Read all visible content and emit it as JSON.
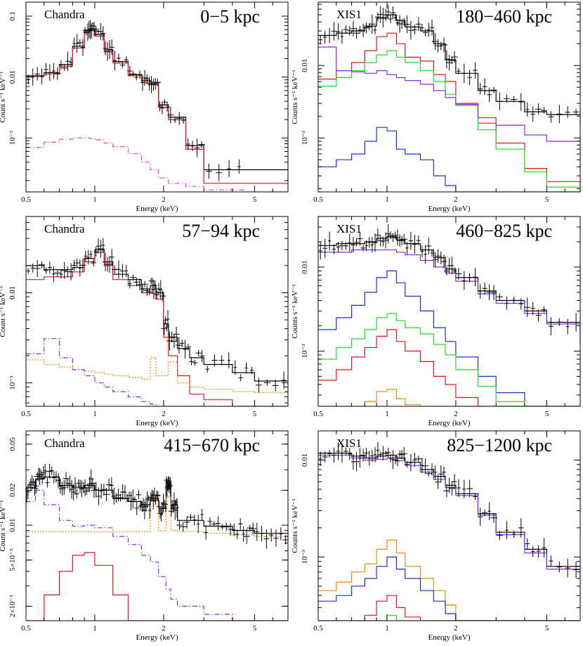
{
  "colors": {
    "data": "#000000",
    "total_model": "#000000",
    "red": "#e0141a",
    "green": "#22dd22",
    "blue": "#1030d8",
    "purple": "#8a2be2",
    "magenta": "#e040e0",
    "orange": "#f0880a"
  },
  "chart_data": [
    {
      "type": "line",
      "instrument": "Chandra",
      "region": "0−5 kpc",
      "xlabel": "Energy (keV)",
      "ylabel": "Count s⁻¹ keV⁻¹",
      "xscale": "log",
      "yscale": "log",
      "xlim": [
        0.5,
        7
      ],
      "ylim": [
        0.00013,
        0.17
      ],
      "xticks": [
        "0.5",
        "1",
        "2",
        "5"
      ],
      "yticks": [
        "0.1",
        "0.01",
        "10⁻³"
      ],
      "x": [
        0.5,
        0.6,
        0.7,
        0.8,
        0.9,
        0.95,
        1.0,
        1.1,
        1.2,
        1.4,
        1.6,
        1.75,
        1.9,
        2.1,
        2.5,
        3.0,
        4.5
      ],
      "series": [
        {
          "color": "black",
          "style": "step",
          "values": [
            0.0105,
            0.0118,
            0.016,
            0.032,
            0.058,
            0.062,
            0.05,
            0.028,
            0.018,
            0.011,
            0.0088,
            0.0082,
            0.0035,
            0.0022,
            0.00075,
            0.0003,
            0.0003
          ]
        },
        {
          "color": "red",
          "style": "step",
          "values": [
            0.0102,
            0.0112,
            0.015,
            0.03,
            0.055,
            0.058,
            0.047,
            0.026,
            0.017,
            0.0105,
            0.0083,
            0.0078,
            0.0032,
            0.002,
            0.00065,
            0.00018,
            0.00018
          ]
        },
        {
          "color": "magenta",
          "style": "dashdot",
          "values": [
            0.0007,
            0.00085,
            0.00095,
            0.001,
            0.001,
            0.00098,
            0.00093,
            0.00082,
            0.00072,
            0.00055,
            0.0004,
            0.0003,
            0.00022,
            0.00018,
            0.00016,
            0.00014,
            0.00013
          ]
        }
      ]
    },
    {
      "type": "line",
      "instrument": "XIS1",
      "region": "180−460 kpc",
      "xlabel": "Energy (keV)",
      "ylabel": "Counts s⁻¹ keV⁻¹",
      "xscale": "log",
      "yscale": "log",
      "xlim": [
        0.5,
        7
      ],
      "ylim": [
        0.00018,
        0.075
      ],
      "xticks": [
        "0.5",
        "1",
        "2",
        "5"
      ],
      "yticks": [
        "0.01",
        "10⁻³"
      ],
      "x": [
        0.5,
        0.6,
        0.7,
        0.8,
        0.9,
        1.0,
        1.1,
        1.2,
        1.4,
        1.6,
        1.8,
        2.0,
        2.5,
        3.0,
        4.0,
        5.0,
        7.0
      ],
      "series": [
        {
          "color": "black",
          "style": "step",
          "values": [
            0.026,
            0.028,
            0.03,
            0.035,
            0.045,
            0.05,
            0.042,
            0.034,
            0.03,
            0.02,
            0.012,
            0.0078,
            0.0045,
            0.0032,
            0.0023,
            0.0021,
            0.0016
          ]
        },
        {
          "color": "red",
          "style": "step",
          "values": [
            0.0065,
            0.0085,
            0.011,
            0.016,
            0.025,
            0.028,
            0.02,
            0.013,
            0.0115,
            0.0075,
            0.006,
            0.003,
            0.0016,
            0.00085,
            0.00038,
            0.00025,
            0.00018
          ]
        },
        {
          "color": "green",
          "style": "step",
          "values": [
            0.0052,
            0.0068,
            0.0085,
            0.011,
            0.014,
            0.016,
            0.013,
            0.011,
            0.0085,
            0.006,
            0.004,
            0.0028,
            0.0013,
            0.0007,
            0.00034,
            0.00021,
            0.00018
          ]
        },
        {
          "color": "purple",
          "style": "step",
          "values": [
            0.018,
            0.0085,
            0.0082,
            0.0078,
            0.0085,
            0.0075,
            0.0068,
            0.0062,
            0.0055,
            0.0045,
            0.0036,
            0.0029,
            0.0019,
            0.0015,
            0.0011,
            0.0009,
            0.0007
          ]
        },
        {
          "color": "blue",
          "style": "step",
          "values": [
            0.0004,
            0.0005,
            0.0006,
            0.0009,
            0.0014,
            0.00125,
            0.0007,
            0.0006,
            0.0005,
            0.0003,
            0.00022,
            0.00018,
            0.00018,
            0.00018,
            0.00018,
            0.00018,
            0.00018
          ]
        }
      ]
    },
    {
      "type": "line",
      "instrument": "Chandra",
      "region": "57−94 kpc",
      "xlabel": "Energy (keV)",
      "ylabel": "Count s⁻¹ keV⁻¹",
      "xscale": "log",
      "yscale": "log",
      "xlim": [
        0.5,
        7
      ],
      "ylim": [
        0.00055,
        0.07
      ],
      "xticks": [
        "0.5",
        "1",
        "2",
        "5"
      ],
      "yticks": [
        "0.01",
        "10⁻³"
      ],
      "x": [
        0.5,
        0.6,
        0.7,
        0.8,
        0.9,
        1.0,
        1.1,
        1.2,
        1.4,
        1.6,
        1.75,
        1.85,
        2.0,
        2.1,
        2.3,
        2.6,
        3.0,
        4.0,
        5.0,
        7.0
      ],
      "series": [
        {
          "color": "black",
          "style": "step",
          "values": [
            0.02,
            0.018,
            0.018,
            0.019,
            0.024,
            0.03,
            0.022,
            0.016,
            0.014,
            0.011,
            0.012,
            0.01,
            0.0045,
            0.0032,
            0.0024,
            0.0019,
            0.0016,
            0.0013,
            0.00105,
            0.00095
          ]
        },
        {
          "color": "red",
          "style": "step",
          "values": [
            0.014,
            0.015,
            0.015,
            0.017,
            0.022,
            0.028,
            0.02,
            0.014,
            0.012,
            0.01,
            0.0098,
            0.0085,
            0.0032,
            0.002,
            0.0012,
            0.00075,
            0.00065,
            0.00055,
            0.00055,
            0.00055
          ]
        },
        {
          "color": "orange",
          "style": "dotted",
          "values": [
            0.0018,
            0.0016,
            0.0015,
            0.0014,
            0.00135,
            0.0013,
            0.00125,
            0.0012,
            0.00115,
            0.0011,
            0.0019,
            0.0012,
            0.0012,
            0.0017,
            0.001,
            0.0009,
            0.00085,
            0.0008,
            0.00078,
            0.00075
          ]
        },
        {
          "color": "purple",
          "style": "dashdot",
          "values": [
            0.0021,
            0.0031,
            0.0019,
            0.0014,
            0.0012,
            0.001,
            0.0009,
            0.0008,
            0.0007,
            0.00062,
            0.00058,
            0.00055,
            0.00055,
            0.00055,
            0.00055,
            0.00055,
            0.00055,
            0.00055,
            0.00055,
            0.00055
          ]
        }
      ]
    },
    {
      "type": "line",
      "instrument": "XIS1",
      "region": "460−825 kpc",
      "xlabel": "Energy (keV)",
      "ylabel": "Counts s⁻¹ keV⁻¹",
      "xscale": "log",
      "yscale": "log",
      "xlim": [
        0.5,
        7
      ],
      "ylim": [
        0.00022,
        0.04
      ],
      "xticks": [
        "0.5",
        "1",
        "2",
        "5"
      ],
      "yticks": [
        "0.01",
        "10⁻³"
      ],
      "x": [
        0.5,
        0.6,
        0.7,
        0.8,
        0.9,
        1.0,
        1.1,
        1.2,
        1.4,
        1.6,
        1.8,
        2.0,
        2.5,
        3.0,
        4.0,
        5.0,
        7.0
      ],
      "series": [
        {
          "color": "black",
          "style": "step",
          "values": [
            0.018,
            0.019,
            0.019,
            0.02,
            0.022,
            0.023,
            0.021,
            0.019,
            0.016,
            0.013,
            0.0095,
            0.0075,
            0.0052,
            0.004,
            0.003,
            0.0022,
            0.0012
          ]
        },
        {
          "color": "purple",
          "style": "step",
          "values": [
            0.015,
            0.015,
            0.016,
            0.016,
            0.016,
            0.016,
            0.015,
            0.014,
            0.012,
            0.01,
            0.0085,
            0.0068,
            0.0048,
            0.0037,
            0.0028,
            0.0021,
            0.0012
          ]
        },
        {
          "color": "blue",
          "style": "step",
          "values": [
            0.0018,
            0.0025,
            0.0035,
            0.005,
            0.0075,
            0.009,
            0.0065,
            0.0045,
            0.003,
            0.0019,
            0.0013,
            0.00085,
            0.0005,
            0.00032,
            0.00022,
            0.00022,
            0.00022
          ]
        },
        {
          "color": "green",
          "style": "step",
          "values": [
            0.0008,
            0.0011,
            0.0014,
            0.0018,
            0.0025,
            0.0028,
            0.0023,
            0.0019,
            0.0016,
            0.0012,
            0.0009,
            0.0006,
            0.00038,
            0.00025,
            0.00022,
            0.00022,
            0.00022
          ]
        },
        {
          "color": "red",
          "style": "step",
          "values": [
            0.00045,
            0.0006,
            0.00085,
            0.0011,
            0.0015,
            0.0018,
            0.0013,
            0.001,
            0.00075,
            0.0005,
            0.0004,
            0.00028,
            0.00022,
            0.00022,
            0.00022,
            0.00022,
            0.00022
          ]
        },
        {
          "color": "orange",
          "style": "step",
          "values": [
            0.00022,
            0.00022,
            0.00022,
            0.00025,
            0.00033,
            0.00035,
            0.00027,
            0.00023,
            0.00022,
            0.00022,
            0.00022,
            0.00022,
            0.00022,
            0.00022,
            0.00022,
            0.00022,
            0.00022
          ]
        }
      ]
    },
    {
      "type": "line",
      "instrument": "Chandra",
      "region": "415−670 kpc",
      "xlabel": "Energy (keV)",
      "ylabel": "Count s⁻¹ keV⁻¹",
      "xscale": "log",
      "yscale": "log",
      "xlim": [
        0.5,
        7
      ],
      "ylim": [
        0.0015,
        0.065
      ],
      "xticks": [
        "0.5",
        "1",
        "2",
        "5"
      ],
      "yticks": [
        "0.05",
        "0.02",
        "0.01",
        "5×10⁻³",
        "2×10⁻³"
      ],
      "x": [
        0.5,
        0.55,
        0.6,
        0.7,
        0.8,
        0.9,
        1.0,
        1.2,
        1.4,
        1.6,
        1.75,
        1.9,
        2.05,
        2.15,
        2.3,
        3.0,
        4.0,
        5.0,
        7.0
      ],
      "series": [
        {
          "color": "black",
          "style": "step",
          "values": [
            0.021,
            0.025,
            0.026,
            0.022,
            0.021,
            0.022,
            0.02,
            0.017,
            0.016,
            0.015,
            0.017,
            0.014,
            0.024,
            0.015,
            0.011,
            0.0098,
            0.009,
            0.0085,
            0.0082
          ]
        },
        {
          "color": "orange",
          "style": "dotted",
          "values": [
            0.0088,
            0.0088,
            0.0088,
            0.0088,
            0.0088,
            0.0088,
            0.0088,
            0.0088,
            0.0088,
            0.0088,
            0.016,
            0.0089,
            0.0175,
            0.009,
            0.0088,
            0.0085,
            0.0082,
            0.008,
            0.0078
          ]
        },
        {
          "color": "purple",
          "style": "dashdot",
          "values": [
            0.016,
            0.02,
            0.015,
            0.011,
            0.0098,
            0.01,
            0.0095,
            0.008,
            0.0068,
            0.0055,
            0.0048,
            0.0036,
            0.0028,
            0.0023,
            0.002,
            0.0017,
            0.0015,
            0.0015,
            0.0015
          ]
        },
        {
          "color": "red",
          "style": "step",
          "values": [
            0.0015,
            0.0015,
            0.0025,
            0.004,
            0.0055,
            0.0058,
            0.0045,
            0.0025,
            0.0015,
            0.0015,
            0.0015,
            0.0015,
            0.0015,
            0.0015,
            0.0015,
            0.0015,
            0.0015,
            0.0015,
            0.0015
          ]
        }
      ]
    },
    {
      "type": "line",
      "instrument": "XIS1",
      "region": "825−1200 kpc",
      "xlabel": "Energy (keV)",
      "ylabel": "Counts s⁻¹ keV⁻¹",
      "xscale": "log",
      "yscale": "log",
      "xlim": [
        0.5,
        7
      ],
      "ylim": [
        0.00022,
        0.02
      ],
      "xticks": [
        "0.5",
        "1",
        "2",
        "5"
      ],
      "yticks": [
        "0.01",
        "10⁻³"
      ],
      "x": [
        0.5,
        0.6,
        0.7,
        0.8,
        0.9,
        1.0,
        1.1,
        1.2,
        1.4,
        1.6,
        1.8,
        2.0,
        2.5,
        3.0,
        4.0,
        5.0,
        7.0
      ],
      "series": [
        {
          "color": "black",
          "style": "step",
          "values": [
            0.0118,
            0.0118,
            0.011,
            0.0105,
            0.011,
            0.0112,
            0.0105,
            0.0095,
            0.008,
            0.0068,
            0.0055,
            0.0045,
            0.0028,
            0.0018,
            0.0012,
            0.0008,
            0.0006
          ]
        },
        {
          "color": "purple",
          "style": "step",
          "values": [
            0.0112,
            0.0112,
            0.0105,
            0.01,
            0.0102,
            0.0105,
            0.0098,
            0.0088,
            0.0075,
            0.0063,
            0.0052,
            0.0043,
            0.0027,
            0.0017,
            0.0011,
            0.00075,
            0.00055
          ]
        },
        {
          "color": "orange",
          "style": "step",
          "values": [
            0.00045,
            0.00055,
            0.0007,
            0.00085,
            0.0012,
            0.0015,
            0.0011,
            0.0008,
            0.0006,
            0.00045,
            0.00032,
            0.00022,
            0.00022,
            0.00022,
            0.00022,
            0.00022,
            0.00022
          ]
        },
        {
          "color": "blue",
          "style": "step",
          "values": [
            0.00035,
            0.0004,
            0.0005,
            0.0006,
            0.0008,
            0.001,
            0.00075,
            0.0006,
            0.00045,
            0.00035,
            0.00026,
            0.00022,
            0.00022,
            0.00022,
            0.00022,
            0.00022,
            0.00022
          ]
        },
        {
          "color": "red",
          "style": "step",
          "values": [
            0.00022,
            0.00022,
            0.00022,
            0.00025,
            0.00035,
            0.0004,
            0.0003,
            0.00024,
            0.00022,
            0.00022,
            0.00022,
            0.00022,
            0.00022,
            0.00022,
            0.00022,
            0.00022,
            0.00022
          ]
        },
        {
          "color": "green",
          "style": "step",
          "values": [
            0.00022,
            0.00022,
            0.00022,
            0.00022,
            0.00022,
            0.00025,
            0.00022,
            0.00022,
            0.00022,
            0.00022,
            0.00022,
            0.00022,
            0.00022,
            0.00022,
            0.00022,
            0.00022,
            0.00022
          ]
        }
      ]
    }
  ]
}
